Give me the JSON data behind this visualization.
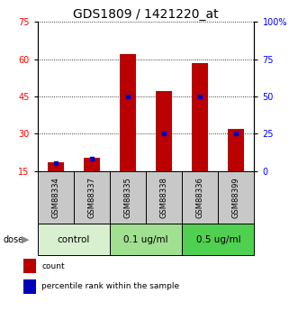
{
  "title": "GDS1809 / 1421220_at",
  "samples": [
    "GSM88334",
    "GSM88337",
    "GSM88335",
    "GSM88338",
    "GSM88336",
    "GSM88399"
  ],
  "red_values": [
    18.5,
    20.5,
    62.0,
    47.0,
    58.5,
    32.0
  ],
  "blue_percentiles": [
    5.5,
    8.5,
    50.0,
    25.0,
    50.0,
    25.0
  ],
  "red_base": 15.0,
  "left_ylim": [
    15,
    75
  ],
  "right_ylim": [
    0,
    100
  ],
  "left_yticks": [
    15,
    30,
    45,
    60,
    75
  ],
  "right_yticks": [
    0,
    25,
    50,
    75,
    100
  ],
  "right_yticklabels": [
    "0",
    "25",
    "50",
    "75",
    "100%"
  ],
  "groups": [
    {
      "label": "control",
      "span": 2,
      "color": "#d8f0d0"
    },
    {
      "label": "0.1 ug/ml",
      "span": 2,
      "color": "#a0e090"
    },
    {
      "label": "0.5 ug/ml",
      "span": 2,
      "color": "#50d050"
    }
  ],
  "dose_label": "dose",
  "legend_red": "count",
  "legend_blue": "percentile rank within the sample",
  "bar_color": "#bb0000",
  "blue_color": "#0000bb",
  "bar_width": 0.45,
  "sample_bg_color": "#c8c8c8",
  "title_fontsize": 10,
  "tick_fontsize": 7,
  "sample_fontsize": 6,
  "group_fontsize": 7.5,
  "legend_fontsize": 6.5
}
